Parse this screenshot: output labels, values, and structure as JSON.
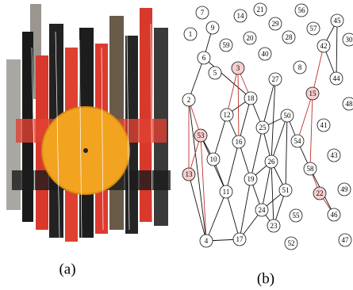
{
  "figure": {
    "panel_a": {
      "label": "(a)"
    },
    "panel_b": {
      "label": "(b)",
      "nodes": [
        {
          "label": "7"
        },
        {
          "label": "14"
        },
        {
          "label": "21"
        },
        {
          "label": "56"
        },
        {
          "label": "9"
        },
        {
          "label": "29"
        },
        {
          "label": "45"
        },
        {
          "label": "1"
        },
        {
          "label": "20"
        },
        {
          "label": "28"
        },
        {
          "label": "57"
        },
        {
          "label": "30"
        },
        {
          "label": "59"
        },
        {
          "label": "42"
        },
        {
          "label": "40"
        },
        {
          "label": "6"
        },
        {
          "label": "8"
        },
        {
          "label": "3"
        },
        {
          "label": "5"
        },
        {
          "label": "44"
        },
        {
          "label": "27"
        },
        {
          "label": "15"
        },
        {
          "label": "18"
        },
        {
          "label": "2"
        },
        {
          "label": "48"
        },
        {
          "label": "12"
        },
        {
          "label": "50"
        },
        {
          "label": "25"
        },
        {
          "label": "41"
        },
        {
          "label": "16"
        },
        {
          "label": "54"
        },
        {
          "label": "53"
        },
        {
          "label": "43"
        },
        {
          "label": "10"
        },
        {
          "label": "26"
        },
        {
          "label": "58"
        },
        {
          "label": "19"
        },
        {
          "label": "13"
        },
        {
          "label": "11"
        },
        {
          "label": "51"
        },
        {
          "label": "49"
        },
        {
          "label": "22"
        },
        {
          "label": "24"
        },
        {
          "label": "46"
        },
        {
          "label": "55"
        },
        {
          "label": "23"
        },
        {
          "label": "4"
        },
        {
          "label": "17"
        },
        {
          "label": "52"
        },
        {
          "label": "47"
        }
      ]
    }
  }
}
